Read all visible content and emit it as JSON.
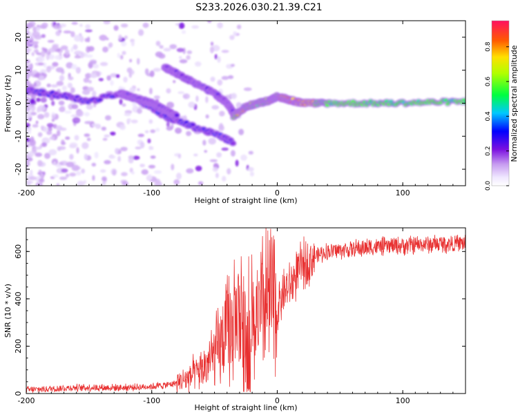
{
  "title": "S233.2026.030.21.39.C21",
  "colors": {
    "snr_line": "#e83030",
    "axis": "#000000",
    "background": "#ffffff"
  },
  "chart_data": [
    {
      "type": "heatmap",
      "title": "S233.2026.030.21.39.C21",
      "xlabel": "Height of straight line (km)",
      "ylabel": "Frequency (Hz)",
      "xlim": [
        -200,
        150
      ],
      "ylim": [
        -25,
        25
      ],
      "x_ticks": [
        -200,
        -100,
        0,
        100
      ],
      "y_ticks": [
        -20,
        -10,
        0,
        10,
        20
      ],
      "colorbar": {
        "label": "Normalized spectral amplitude",
        "range": [
          0,
          0.95
        ],
        "ticks": [
          0.0,
          0.2,
          0.4,
          0.6,
          0.8
        ],
        "tick_labels": [
          "0.0",
          "0.2",
          "0.4",
          "0.6",
          "0.8"
        ]
      },
      "ridges": [
        {
          "name": "multipath-lower",
          "points": [
            [
              -200,
              4
            ],
            [
              -185,
              3
            ],
            [
              -165,
              2
            ],
            [
              -150,
              0.5
            ],
            [
              -125,
              3
            ],
            [
              -110,
              1
            ],
            [
              -90,
              -4
            ],
            [
              -75,
              -6
            ],
            [
              -60,
              -8
            ],
            [
              -45,
              -10
            ],
            [
              -35,
              -12
            ]
          ],
          "amp": 0.35
        },
        {
          "name": "multipath-branch",
          "points": [
            [
              -125,
              3
            ],
            [
              -100,
              0
            ],
            [
              -80,
              -4
            ]
          ],
          "amp": 0.3
        },
        {
          "name": "upper-diagonal",
          "points": [
            [
              -90,
              11
            ],
            [
              -80,
              9
            ],
            [
              -65,
              6
            ],
            [
              -50,
              3
            ],
            [
              -40,
              0
            ],
            [
              -35,
              -3
            ]
          ],
          "amp": 0.3
        },
        {
          "name": "direct-signal",
          "points": [
            [
              -35,
              -4
            ],
            [
              -25,
              -1
            ],
            [
              -15,
              0
            ],
            [
              -5,
              1
            ],
            [
              0,
              2
            ],
            [
              10,
              1
            ],
            [
              20,
              0
            ],
            [
              40,
              0
            ],
            [
              90,
              0
            ],
            [
              150,
              0.5
            ]
          ],
          "amp": 0.85
        }
      ]
    },
    {
      "type": "line",
      "xlabel": "Height of straight line (km)",
      "ylabel": "SNR (10 * v/v)",
      "xlim": [
        -200,
        150
      ],
      "ylim": [
        0,
        700
      ],
      "x_ticks": [
        -200,
        -100,
        0,
        100
      ],
      "y_ticks": [
        0,
        200,
        400,
        600
      ],
      "series": [
        {
          "name": "SNR",
          "x": [
            -200,
            -180,
            -160,
            -140,
            -120,
            -100,
            -90,
            -80,
            -70,
            -60,
            -50,
            -40,
            -30,
            -25,
            -20,
            -15,
            -10,
            -5,
            0,
            5,
            10,
            15,
            20,
            30,
            40,
            60,
            80,
            100,
            120,
            150
          ],
          "y": [
            15,
            20,
            25,
            25,
            25,
            30,
            35,
            45,
            70,
            100,
            160,
            250,
            320,
            280,
            330,
            300,
            370,
            400,
            350,
            430,
            450,
            500,
            540,
            580,
            600,
            610,
            620,
            625,
            630,
            635
          ]
        }
      ]
    }
  ]
}
